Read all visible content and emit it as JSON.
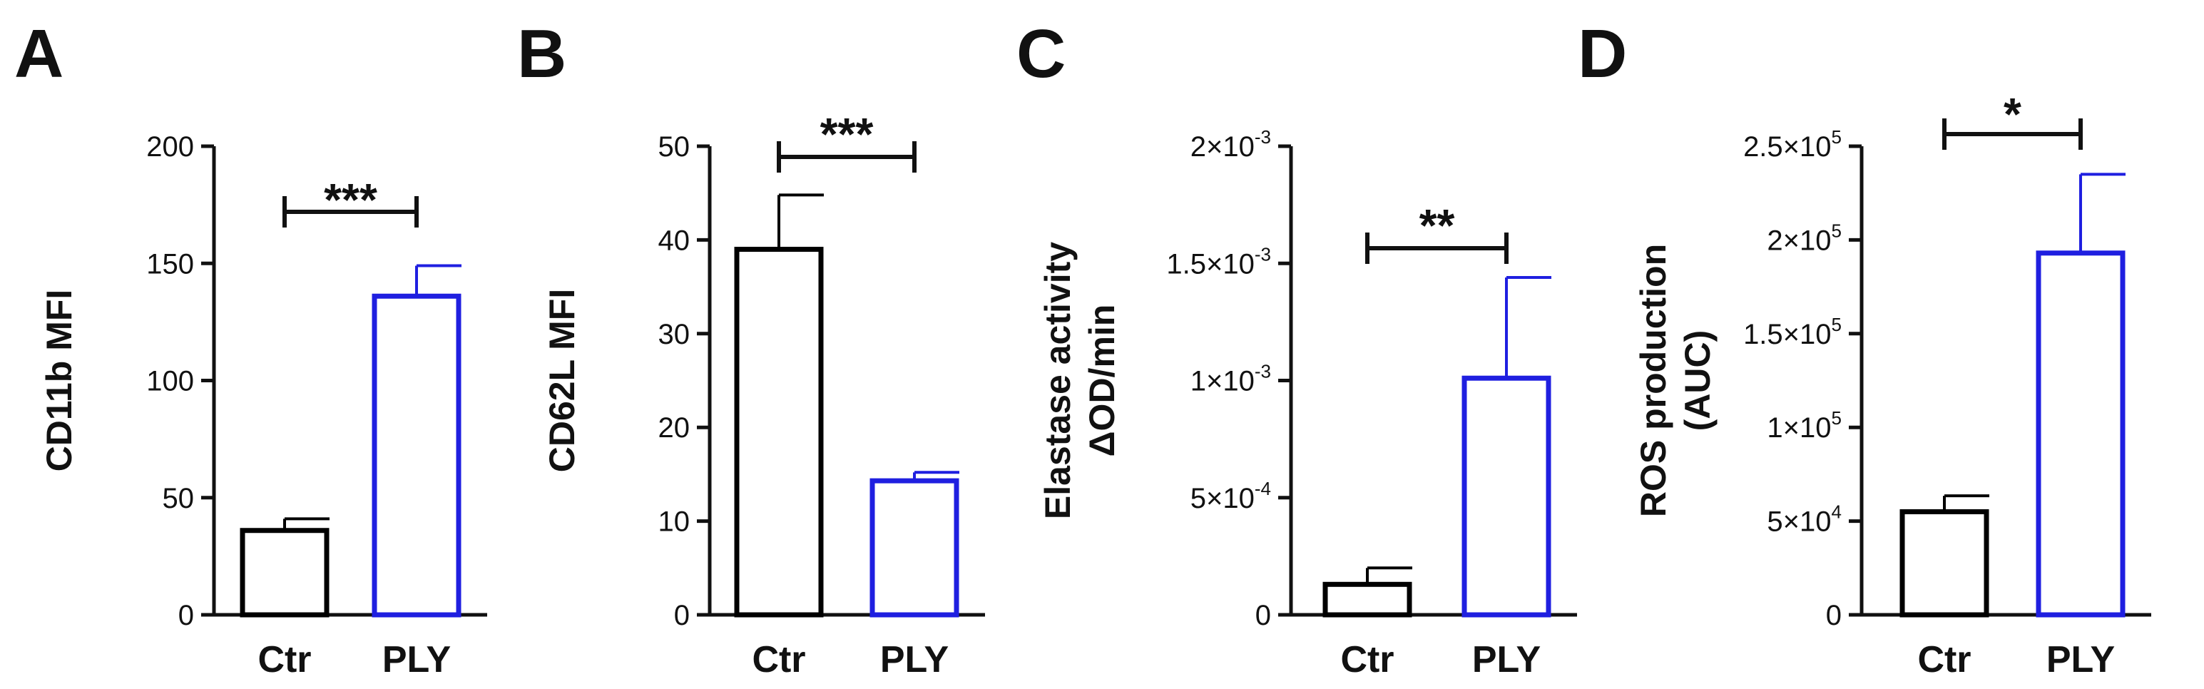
{
  "chart_data": [
    {
      "type": "bar",
      "panel": "A",
      "categories": [
        "Ctr",
        "PLY"
      ],
      "values": [
        36,
        136
      ],
      "errors": [
        5,
        13
      ],
      "bar_colors": [
        "#000000",
        "#1f1fe0"
      ],
      "ylabel": "CD11b MFI",
      "ylim": [
        0,
        200
      ],
      "yticks": [
        0,
        50,
        100,
        150,
        200
      ],
      "ytick_labels": [
        {
          "base": "0"
        },
        {
          "base": "50"
        },
        {
          "base": "100"
        },
        {
          "base": "150"
        },
        {
          "base": "200"
        }
      ],
      "significance": "***"
    },
    {
      "type": "bar",
      "panel": "B",
      "categories": [
        "Ctr",
        "PLY"
      ],
      "values": [
        39,
        14.3
      ],
      "errors": [
        5.8,
        0.9
      ],
      "bar_colors": [
        "#000000",
        "#1f1fe0"
      ],
      "ylabel": "CD62L MFI",
      "ylim": [
        0,
        50
      ],
      "yticks": [
        0,
        10,
        20,
        30,
        40,
        50
      ],
      "ytick_labels": [
        {
          "base": "0"
        },
        {
          "base": "10"
        },
        {
          "base": "20"
        },
        {
          "base": "30"
        },
        {
          "base": "40"
        },
        {
          "base": "50"
        }
      ],
      "significance": "***"
    },
    {
      "type": "bar",
      "panel": "C",
      "categories": [
        "Ctr",
        "PLY"
      ],
      "values": [
        0.00013,
        0.00101
      ],
      "errors": [
        7e-05,
        0.00043
      ],
      "bar_colors": [
        "#000000",
        "#1f1fe0"
      ],
      "ylabel": [
        "Elastase activity",
        "ΔOD/min"
      ],
      "ylim": [
        0,
        0.002
      ],
      "yticks": [
        0,
        0.0005,
        0.001,
        0.0015,
        0.002
      ],
      "ytick_labels": [
        {
          "base": "0"
        },
        {
          "base": "5×10",
          "exp": "-4"
        },
        {
          "base": "1×10",
          "exp": "-3"
        },
        {
          "base": "1.5×10",
          "exp": "-3"
        },
        {
          "base": "2×10",
          "exp": "-3"
        }
      ],
      "significance": "**"
    },
    {
      "type": "bar",
      "panel": "D",
      "categories": [
        "Ctr",
        "PLY"
      ],
      "values": [
        55000,
        193000
      ],
      "errors": [
        8500,
        42000
      ],
      "bar_colors": [
        "#000000",
        "#1f1fe0"
      ],
      "ylabel": [
        "ROS production",
        "(AUC)"
      ],
      "ylim": [
        0,
        250000
      ],
      "yticks": [
        0,
        50000,
        100000,
        150000,
        200000,
        250000
      ],
      "ytick_labels": [
        {
          "base": "0"
        },
        {
          "base": "5×10",
          "exp": "4"
        },
        {
          "base": "1×10",
          "exp": "5"
        },
        {
          "base": "1.5×10",
          "exp": "5"
        },
        {
          "base": "2×10",
          "exp": "5"
        },
        {
          "base": "2.5×10",
          "exp": "5"
        }
      ],
      "significance": "*"
    }
  ]
}
